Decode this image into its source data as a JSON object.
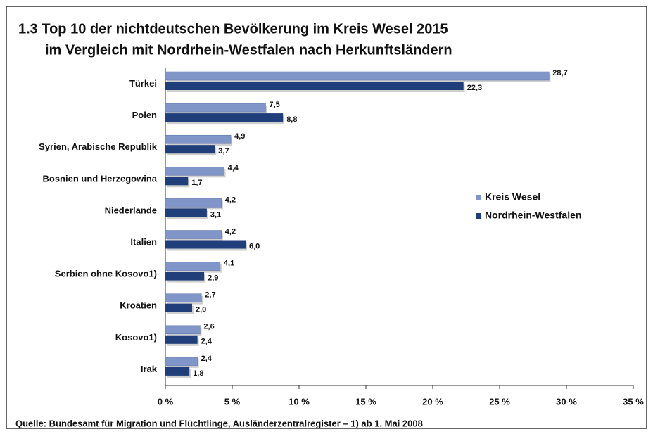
{
  "chart_data": {
    "type": "barh",
    "title": [
      "1.3  Top 10 der nichtdeutschen Bevölkerung im Kreis Wesel 2015",
      "im Vergleich mit Nordrhein-Westfalen nach Herkunftsländern"
    ],
    "source": "Quelle: Bundesamt für Migration und Flüchtlinge, Ausländerzentralregister – 1) ab 1. Mai 2008",
    "categories": [
      "Türkei",
      "Polen",
      "Syrien, Arabische Republik",
      "Bosnien und Herzegowina",
      "Niederlande",
      "Italien",
      "Serbien ohne Kosovo1)",
      "Kroatien",
      "Kosovo1)",
      "Irak"
    ],
    "series": [
      {
        "name": "Kreis Wesel",
        "color": "#8096c8",
        "values": [
          28.7,
          7.5,
          4.9,
          4.4,
          4.2,
          4.2,
          4.1,
          2.7,
          2.6,
          2.4
        ],
        "value_labels": [
          "28,7",
          "7,5",
          "4,9",
          "4,4",
          "4,2",
          "4,2",
          "4,1",
          "2,7",
          "2,6",
          "2,4"
        ]
      },
      {
        "name": "Nordrhein-Westfalen",
        "color": "#1f3e7a",
        "values": [
          22.3,
          8.8,
          3.7,
          1.7,
          3.1,
          6.0,
          2.9,
          2.0,
          2.4,
          1.8
        ],
        "value_labels": [
          "22,3",
          "8,8",
          "3,7",
          "1,7",
          "3,1",
          "6,0",
          "2,9",
          "2,0",
          "2,4",
          "1,8"
        ]
      }
    ],
    "xlim": [
      0,
      35
    ],
    "xticks": [
      {
        "value": 0,
        "label": "0 %"
      },
      {
        "value": 5,
        "label": "5 %"
      },
      {
        "value": 10,
        "label": "10 %"
      },
      {
        "value": 15,
        "label": "15 %"
      },
      {
        "value": 20,
        "label": "20 %"
      },
      {
        "value": 25,
        "label": "25 %"
      },
      {
        "value": 30,
        "label": "30 %"
      },
      {
        "value": 35,
        "label": "35 %"
      }
    ],
    "legend": "right"
  }
}
